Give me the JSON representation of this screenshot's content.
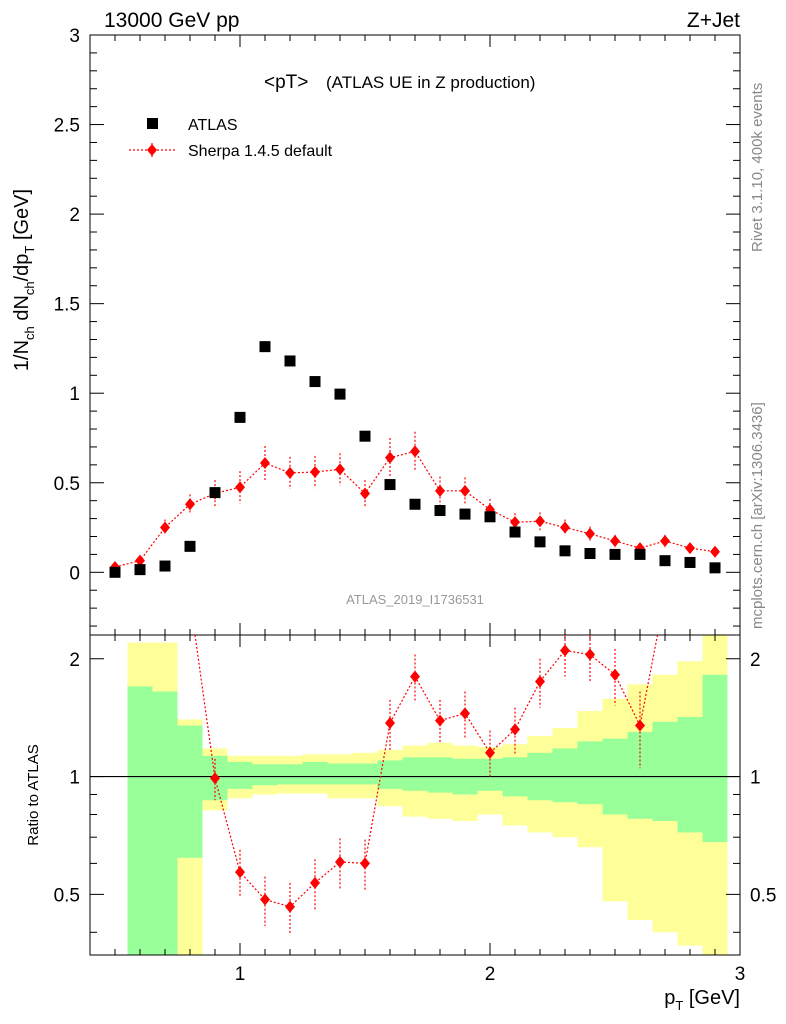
{
  "header": {
    "top_left": "13000 GeV pp",
    "top_right": "Z+Jet",
    "plot_title": "<pT>",
    "plot_subtitle": "(ATLAS UE in Z production)",
    "watermark": "ATLAS_2019_I1736531",
    "side_label_top": "Rivet 3.1.10,  400k events",
    "side_label_bottom": "mcplots.cern.ch [arXiv:1306.3436]"
  },
  "colors": {
    "data": "#000000",
    "mc": "#ff0000",
    "band_inner": "#99ff99",
    "band_outer": "#ffff99",
    "watermark": "#999999"
  },
  "chart_data": [
    {
      "type": "scatter",
      "title": "<pT> (ATLAS UE in Z production)",
      "xlabel": "p_T [GeV]",
      "ylabel": "1/N_ch dN_ch/dp_T [GeV]",
      "xlim": [
        0.4,
        3.0
      ],
      "ylim": [
        -0.35,
        3.0
      ],
      "x_ticks": [
        "1",
        "2",
        "3"
      ],
      "y_ticks": [
        "0",
        "0.5",
        "1",
        "1.5",
        "2",
        "2.5",
        "3"
      ],
      "legend_position": "top-left",
      "x": [
        0.5,
        0.6,
        0.7,
        0.8,
        0.9,
        1.0,
        1.1,
        1.2,
        1.3,
        1.4,
        1.5,
        1.6,
        1.7,
        1.8,
        1.9,
        2.0,
        2.1,
        2.2,
        2.3,
        2.4,
        2.5,
        2.6,
        2.7,
        2.8,
        2.9
      ],
      "series": [
        {
          "name": "ATLAS",
          "marker": "square",
          "values": [
            0.0,
            0.015,
            0.035,
            0.145,
            0.445,
            0.865,
            1.26,
            1.18,
            1.065,
            0.995,
            0.76,
            0.49,
            0.38,
            0.345,
            0.325,
            0.31,
            0.225,
            0.17,
            0.12,
            0.105,
            0.1,
            0.1,
            0.065,
            0.055,
            0.025
          ]
        },
        {
          "name": "Sherpa 1.4.5 default",
          "marker": "diamond",
          "values": [
            0.03,
            0.065,
            0.25,
            0.38,
            0.44,
            0.475,
            0.61,
            0.555,
            0.56,
            0.575,
            0.44,
            0.64,
            0.675,
            0.455,
            0.455,
            0.35,
            0.28,
            0.285,
            0.25,
            0.215,
            0.175,
            0.135,
            0.175,
            0.135,
            0.115
          ],
          "errors": [
            0.02,
            0.02,
            0.045,
            0.055,
            0.075,
            0.09,
            0.095,
            0.09,
            0.09,
            0.09,
            0.075,
            0.11,
            0.11,
            0.08,
            0.075,
            0.06,
            0.05,
            0.05,
            0.045,
            0.04,
            0.035,
            0.03,
            0.035,
            0.03,
            0.03
          ]
        }
      ]
    },
    {
      "type": "line",
      "ylabel": "Ratio to ATLAS",
      "xlabel": "p_T [GeV]",
      "xlim": [
        0.4,
        3.0
      ],
      "ylim": [
        0.35,
        2.3
      ],
      "y_scale": "log",
      "x_ticks": [
        "1",
        "2",
        "3"
      ],
      "y_ticks": [
        "0.5",
        "1",
        "2"
      ],
      "reference_line": 1,
      "bin_edges": [
        0.55,
        0.65,
        0.75,
        0.85,
        0.95,
        1.05,
        1.15,
        1.25,
        1.35,
        1.45,
        1.55,
        1.65,
        1.75,
        1.85,
        1.95,
        2.05,
        2.15,
        2.25,
        2.35,
        2.45,
        2.55,
        2.65,
        2.75,
        2.85,
        2.95
      ],
      "band_inner": {
        "low": [
          0.3,
          0.3,
          0.62,
          0.87,
          0.93,
          0.95,
          0.955,
          0.955,
          0.955,
          0.955,
          0.93,
          0.92,
          0.91,
          0.9,
          0.92,
          0.89,
          0.87,
          0.86,
          0.85,
          0.8,
          0.78,
          0.77,
          0.72,
          0.68
        ],
        "high": [
          1.7,
          1.65,
          1.35,
          1.13,
          1.09,
          1.075,
          1.075,
          1.09,
          1.08,
          1.08,
          1.1,
          1.12,
          1.12,
          1.11,
          1.11,
          1.12,
          1.15,
          1.18,
          1.23,
          1.25,
          1.3,
          1.38,
          1.42,
          1.82
        ]
      },
      "band_outer": {
        "low": [
          0.3,
          0.3,
          0.3,
          0.82,
          0.88,
          0.9,
          0.905,
          0.905,
          0.88,
          0.88,
          0.84,
          0.79,
          0.78,
          0.77,
          0.8,
          0.75,
          0.72,
          0.7,
          0.66,
          0.48,
          0.43,
          0.4,
          0.37,
          0.3
        ],
        "high": [
          2.2,
          2.2,
          1.4,
          1.18,
          1.13,
          1.13,
          1.13,
          1.14,
          1.14,
          1.15,
          1.17,
          1.2,
          1.22,
          1.2,
          1.19,
          1.21,
          1.27,
          1.33,
          1.47,
          1.58,
          1.72,
          1.82,
          1.97,
          2.4
        ]
      },
      "series": [
        {
          "name": "Sherpa 1.4.5 default",
          "x": [
            0.9,
            1.0,
            1.1,
            1.2,
            1.3,
            1.4,
            1.5,
            1.6,
            1.7,
            1.8,
            1.9,
            2.0,
            2.1,
            2.2,
            2.3,
            2.4,
            2.5,
            2.6
          ],
          "values": [
            0.99,
            0.57,
            0.485,
            0.465,
            0.535,
            0.605,
            0.6,
            1.37,
            1.8,
            1.39,
            1.45,
            1.15,
            1.32,
            1.75,
            2.1,
            2.05,
            1.82,
            1.35
          ],
          "errors": [
            0.12,
            0.08,
            0.07,
            0.07,
            0.08,
            0.09,
            0.09,
            0.2,
            0.25,
            0.18,
            0.2,
            0.16,
            0.18,
            0.25,
            0.3,
            0.3,
            0.3,
            0.3
          ]
        }
      ]
    }
  ]
}
